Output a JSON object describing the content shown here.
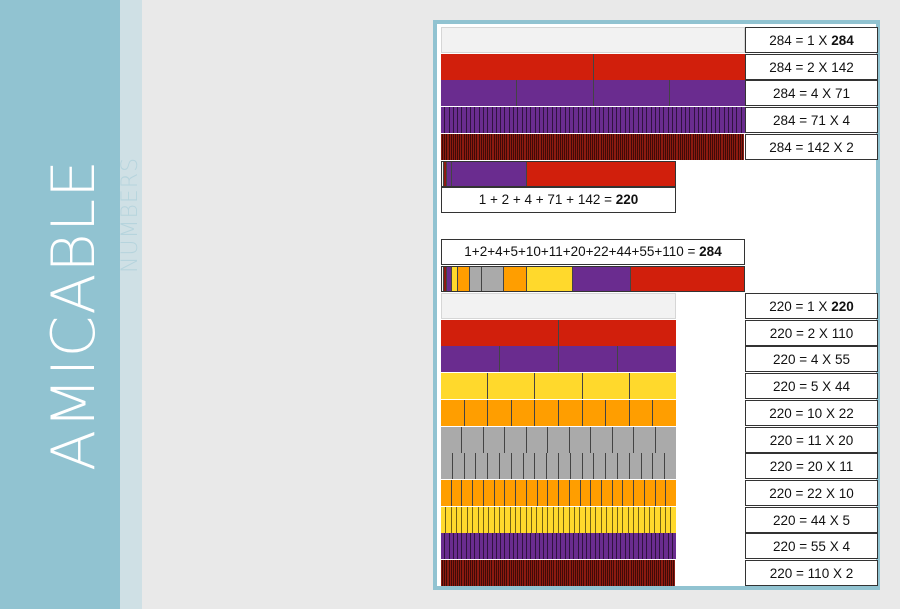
{
  "title": "AMICABLE",
  "subtitle": "NUMBERS",
  "colors": {
    "sidebar": "#91c3d1",
    "one": "#f2f2f2",
    "two": "#d11f0c",
    "four": "#6a2c8f",
    "five": "#ffd92c",
    "ten": "#ff9e00",
    "eleven": "#aaaaaa",
    "darkred": "#8c1a10",
    "outline": "#333333"
  },
  "section_284": {
    "rows": [
      {
        "eq": "284 = 1 X ",
        "bold": "284",
        "parts": 1,
        "color": "one"
      },
      {
        "eq": "284 = 2 X 142",
        "parts": 2,
        "color": "two"
      },
      {
        "eq": "284 = 4 X 71",
        "parts": 4,
        "color": "four"
      },
      {
        "eq": "284 = 71 X 4",
        "parts": 71,
        "color": "four"
      },
      {
        "eq": "284 = 142 X 2",
        "parts": 142,
        "color": "darkred"
      }
    ],
    "sum_label": "1 + 2 + 4 + 71 + 142 = ",
    "sum_bold": "220",
    "sum_segments": [
      {
        "value": 1,
        "color": "one"
      },
      {
        "value": 2,
        "color": "darkred"
      },
      {
        "value": 4,
        "color": "four"
      },
      {
        "value": 71,
        "color": "four"
      },
      {
        "value": 142,
        "color": "two"
      }
    ]
  },
  "section_220": {
    "sum_label": "1+2+4+5+10+11+20+22+44+55+110 = ",
    "sum_bold": "284",
    "sum_segments": [
      {
        "value": 1,
        "color": "one"
      },
      {
        "value": 2,
        "color": "darkred"
      },
      {
        "value": 4,
        "color": "four"
      },
      {
        "value": 5,
        "color": "five"
      },
      {
        "value": 10,
        "color": "ten"
      },
      {
        "value": 11,
        "color": "eleven"
      },
      {
        "value": 20,
        "color": "eleven"
      },
      {
        "value": 22,
        "color": "ten"
      },
      {
        "value": 44,
        "color": "five"
      },
      {
        "value": 55,
        "color": "four"
      },
      {
        "value": 110,
        "color": "two"
      }
    ],
    "rows": [
      {
        "eq": "220 = 1 X ",
        "bold": "220",
        "parts": 1,
        "color": "one"
      },
      {
        "eq": "220 = 2 X 110",
        "parts": 2,
        "color": "two"
      },
      {
        "eq": "220 = 4 X 55",
        "parts": 4,
        "color": "four"
      },
      {
        "eq": "220 = 5 X 44",
        "parts": 5,
        "color": "five"
      },
      {
        "eq": "220 = 10 X 22",
        "parts": 10,
        "color": "ten"
      },
      {
        "eq": "220 = 11 X 20",
        "parts": 11,
        "color": "eleven"
      },
      {
        "eq": "220 = 20 X 11",
        "parts": 20,
        "color": "eleven"
      },
      {
        "eq": "220 = 22 X 10",
        "parts": 22,
        "color": "ten"
      },
      {
        "eq": "220 = 44 X 5",
        "parts": 44,
        "color": "five"
      },
      {
        "eq": "220 = 55 X 4",
        "parts": 55,
        "color": "four"
      },
      {
        "eq": "220 = 110 X 2",
        "parts": 110,
        "color": "darkred"
      }
    ]
  }
}
